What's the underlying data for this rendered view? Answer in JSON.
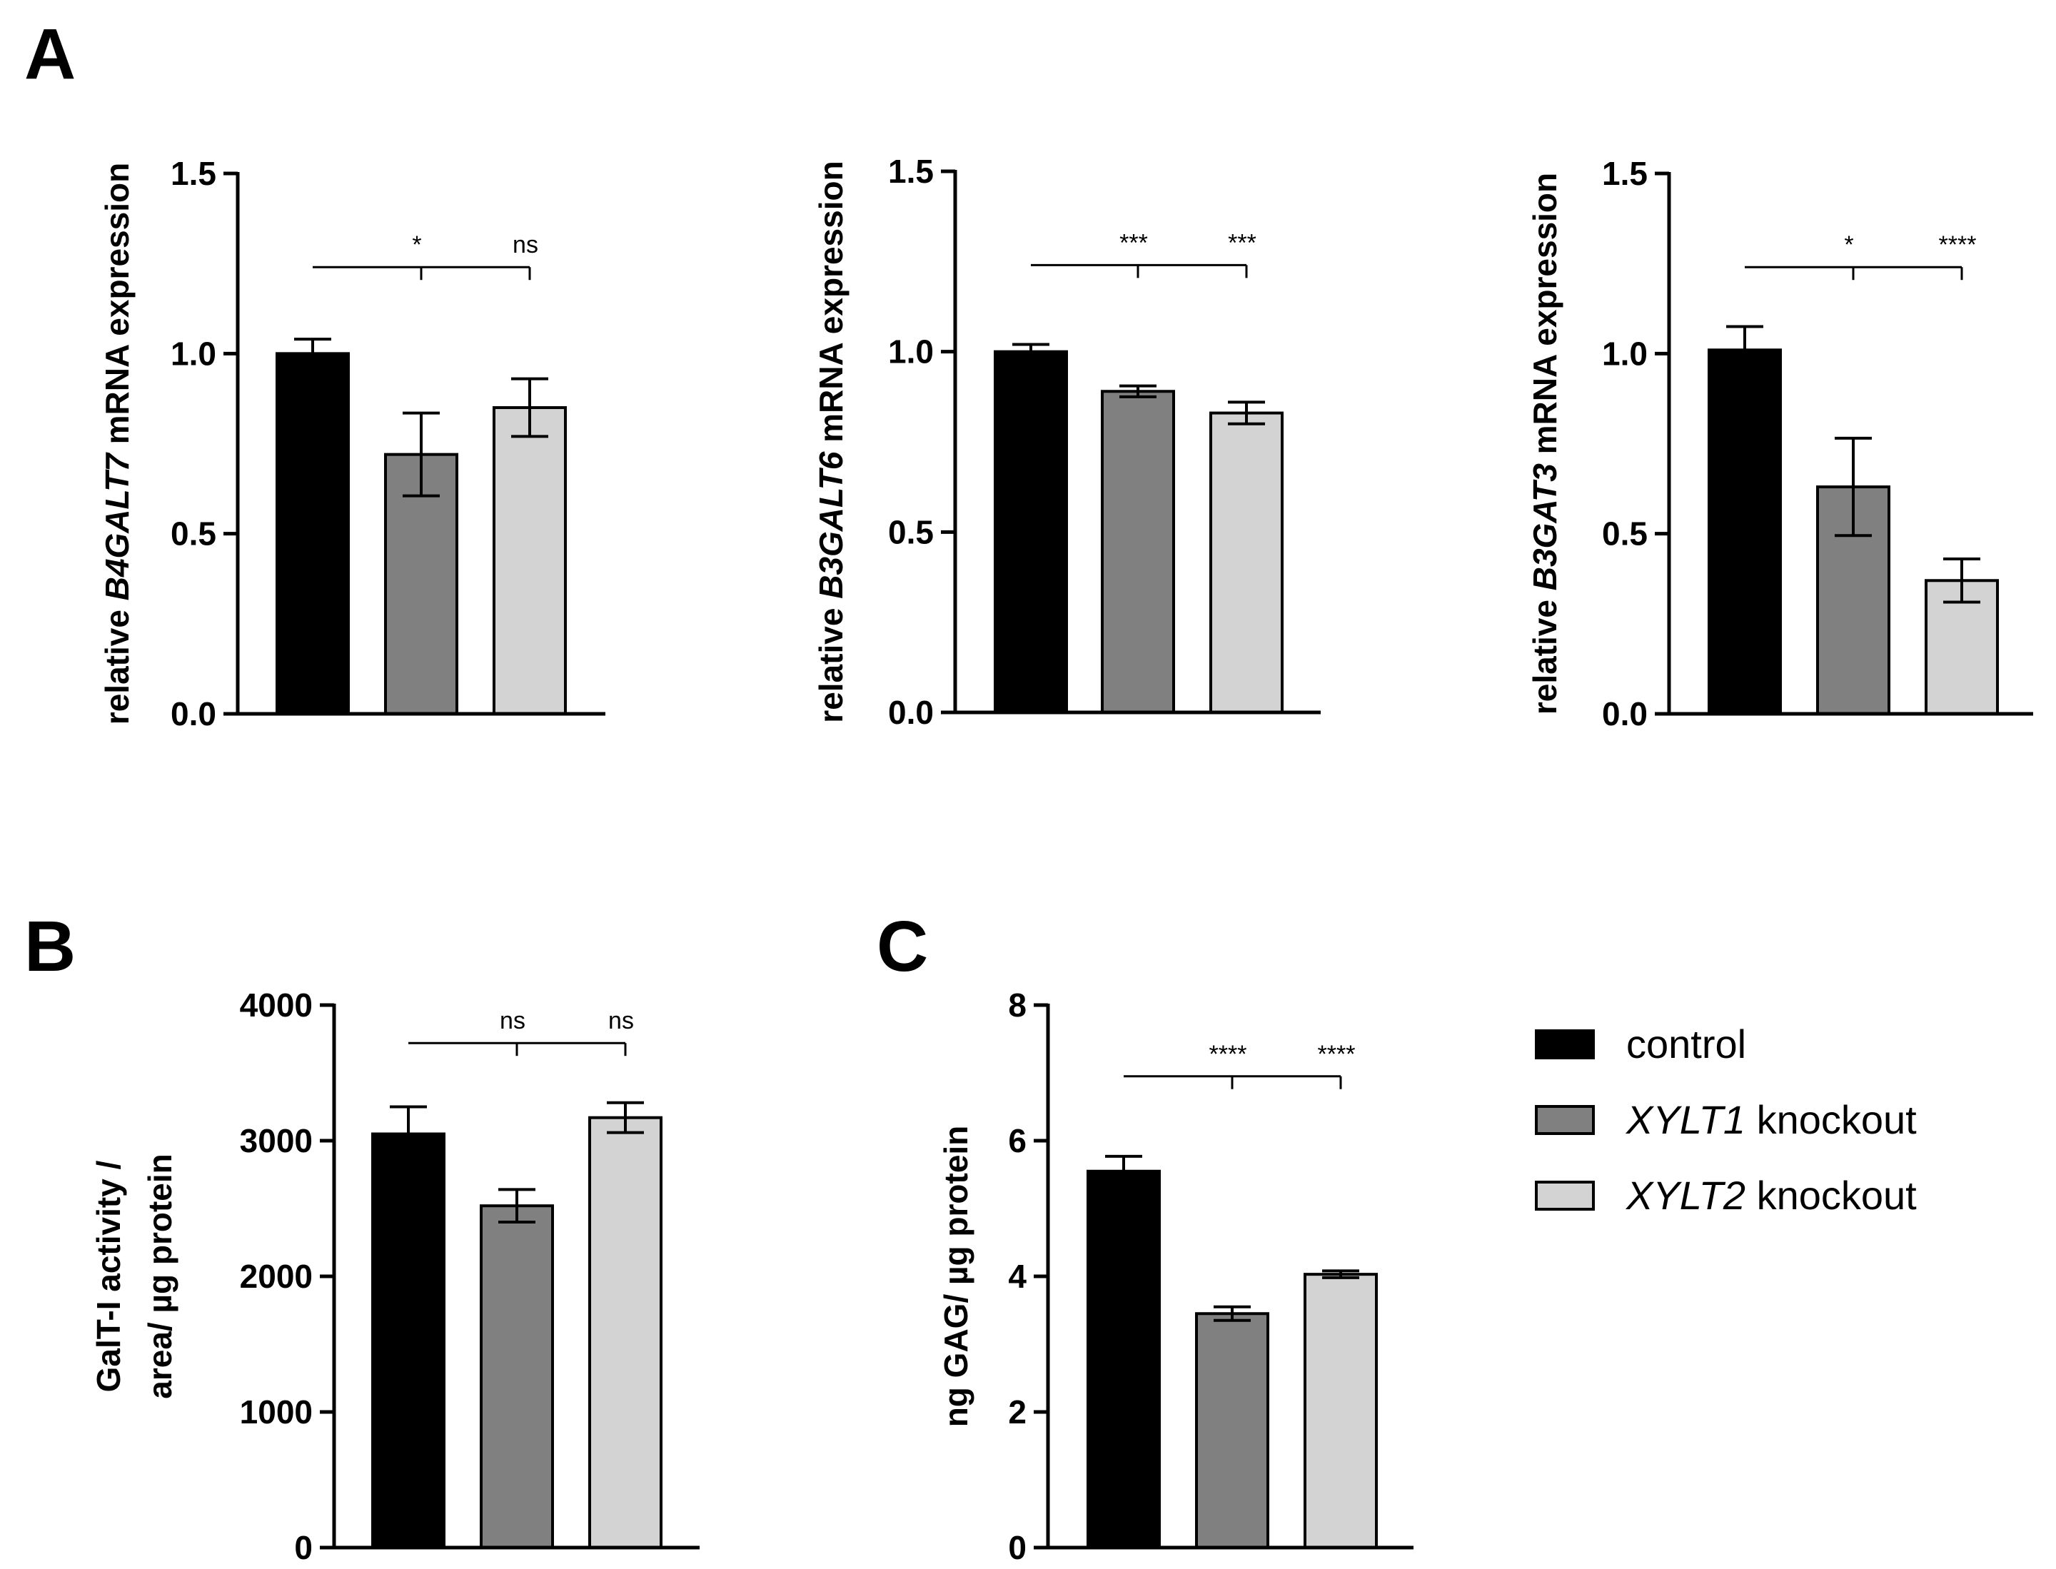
{
  "figure": {
    "panel_labels": [
      "A",
      "B",
      "C"
    ],
    "legend": [
      {
        "pre": "",
        "italic": "",
        "post": "control",
        "color": "#000000"
      },
      {
        "pre": "",
        "italic": "XYLT1",
        "post": " knockout",
        "color": "#808080"
      },
      {
        "pre": "",
        "italic": "XYLT2",
        "post": " knockout",
        "color": "#d3d3d3"
      }
    ]
  },
  "chart_data": [
    {
      "id": "A1",
      "type": "bar",
      "categories": [
        "control",
        "XYLT1 knockout",
        "XYLT2 knockout"
      ],
      "values": [
        1.0,
        0.72,
        0.85
      ],
      "errors": [
        0.04,
        0.115,
        0.08
      ],
      "colors": [
        "#000000",
        "#808080",
        "#d3d3d3"
      ],
      "ylim": [
        0,
        1.5
      ],
      "yticks": [
        0,
        0.5,
        1.0,
        1.5
      ],
      "ytick_labels": [
        "0.0",
        "0.5",
        "1.0",
        "1.5"
      ],
      "ylabel": {
        "pre": "relative ",
        "italic": "B4GALT7",
        "post": " mRNA expression"
      },
      "xlabel": "",
      "significance": {
        "y": 1.24,
        "labels": [
          "*",
          "ns"
        ]
      }
    },
    {
      "id": "A2",
      "type": "bar",
      "categories": [
        "control",
        "XYLT1 knockout",
        "XYLT2 knockout"
      ],
      "values": [
        1.0,
        0.89,
        0.83
      ],
      "errors": [
        0.02,
        0.015,
        0.03
      ],
      "colors": [
        "#000000",
        "#808080",
        "#d3d3d3"
      ],
      "ylim": [
        0,
        1.5
      ],
      "yticks": [
        0,
        0.5,
        1.0,
        1.5
      ],
      "ytick_labels": [
        "0.0",
        "0.5",
        "1.0",
        "1.5"
      ],
      "ylabel": {
        "pre": "relative ",
        "italic": "B3GALT6",
        "post": " mRNA expression"
      },
      "xlabel": "",
      "significance": {
        "y": 1.24,
        "labels": [
          "***",
          "***"
        ]
      }
    },
    {
      "id": "A3",
      "type": "bar",
      "categories": [
        "control",
        "XYLT1 knockout",
        "XYLT2 knockout"
      ],
      "values": [
        1.01,
        0.63,
        0.37
      ],
      "errors": [
        0.065,
        0.135,
        0.06
      ],
      "colors": [
        "#000000",
        "#808080",
        "#d3d3d3"
      ],
      "ylim": [
        0,
        1.5
      ],
      "yticks": [
        0,
        0.5,
        1.0,
        1.5
      ],
      "ytick_labels": [
        "0.0",
        "0.5",
        "1.0",
        "1.5"
      ],
      "ylabel": {
        "pre": "relative ",
        "italic": "B3GAT3",
        "post": " mRNA expression"
      },
      "xlabel": "",
      "significance": {
        "y": 1.24,
        "labels": [
          "*",
          "****"
        ]
      }
    },
    {
      "id": "B",
      "type": "bar",
      "categories": [
        "control",
        "XYLT1 knockout",
        "XYLT2 knockout"
      ],
      "values": [
        3050,
        2520,
        3170
      ],
      "errors": [
        200,
        120,
        110
      ],
      "colors": [
        "#000000",
        "#808080",
        "#d3d3d3"
      ],
      "ylim": [
        0,
        4000
      ],
      "yticks": [
        0,
        1000,
        2000,
        3000,
        4000
      ],
      "ytick_labels": [
        "0",
        "1000",
        "2000",
        "3000",
        "4000"
      ],
      "ylabel_lines": [
        "GalT-I activity /",
        "area/ µg protein"
      ],
      "xlabel": "",
      "significance": {
        "y": 3720,
        "labels": [
          "ns",
          "ns"
        ]
      }
    },
    {
      "id": "C",
      "type": "bar",
      "categories": [
        "control",
        "XYLT1 knockout",
        "XYLT2 knockout"
      ],
      "values": [
        5.55,
        3.45,
        4.03
      ],
      "errors": [
        0.22,
        0.1,
        0.05
      ],
      "colors": [
        "#000000",
        "#808080",
        "#d3d3d3"
      ],
      "ylim": [
        0,
        8
      ],
      "yticks": [
        0,
        2,
        4,
        6,
        8
      ],
      "ytick_labels": [
        "0",
        "2",
        "4",
        "6",
        "8"
      ],
      "ylabel": {
        "pre": "ng GAG/ µg protein",
        "italic": "",
        "post": ""
      },
      "xlabel": "",
      "significance": {
        "y": 6.95,
        "labels": [
          "****",
          "****"
        ]
      }
    }
  ]
}
